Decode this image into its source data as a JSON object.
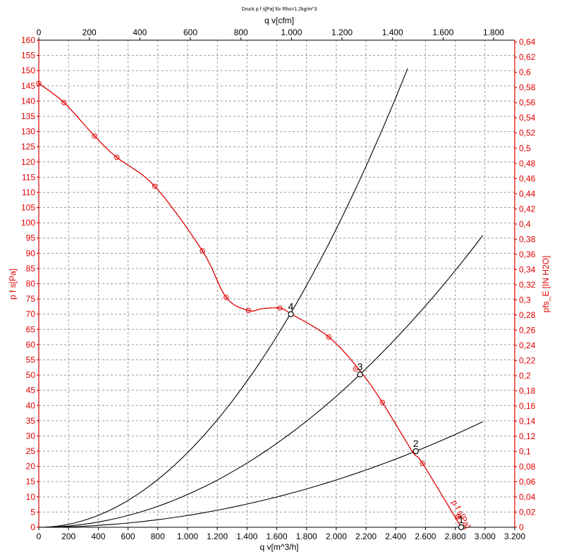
{
  "chart_data": {
    "type": "line",
    "title": "Druck p f s[Pa] für Rho=1,2kg/m^3",
    "xlabel_bottom": "q v[m^3/h]",
    "xlabel_top": "q v[cfm]",
    "ylabel_left": "p f s[Pa]",
    "ylabel_right": "pfs_E [IN H2O]",
    "xlim": [
      0,
      3200
    ],
    "ylim": [
      0,
      160
    ],
    "x_top_lim": [
      0,
      1883.5
    ],
    "y_right_lim": [
      0,
      0.6425
    ],
    "grid": true,
    "x_ticks": [
      "0",
      "200",
      "400",
      "600",
      "800",
      "1.000",
      "1.200",
      "1.400",
      "1.600",
      "1.800",
      "2.000",
      "2.200",
      "2.400",
      "2.600",
      "2.800",
      "3.000",
      "3.200"
    ],
    "x_top_ticks": [
      "0",
      "200",
      "400",
      "600",
      "800",
      "1.000",
      "1.200",
      "1.400",
      "1.600",
      "1.800"
    ],
    "y_ticks": [
      "0",
      "5",
      "10",
      "15",
      "20",
      "25",
      "30",
      "35",
      "40",
      "45",
      "50",
      "55",
      "60",
      "65",
      "70",
      "75",
      "80",
      "85",
      "90",
      "95",
      "100",
      "105",
      "110",
      "115",
      "120",
      "125",
      "130",
      "135",
      "140",
      "145",
      "150",
      "155",
      "160"
    ],
    "y_right_ticks": [
      "0",
      "0,02",
      "0,04",
      "0,06",
      "0,08",
      "0,1",
      "0,12",
      "0,14",
      "0,16",
      "0,18",
      "0,2",
      "0,22",
      "0,24",
      "0,26",
      "0,28",
      "0,3",
      "0,32",
      "0,34",
      "0,36",
      "0,38",
      "0,4",
      "0,42",
      "0,44",
      "0,46",
      "0,48",
      "0,5",
      "0,52",
      "0,54",
      "0,56",
      "0,58",
      "0,6",
      "0,62",
      "0,64"
    ],
    "fan_curve_label": "p f s[Pa]",
    "fan_curve": {
      "x": [
        0,
        170,
        375,
        525,
        780,
        1100,
        1260,
        1410,
        1500,
        1620,
        1700,
        1950,
        2150,
        2310,
        2510,
        2580,
        2840
      ],
      "y": [
        145.8,
        139.5,
        128.5,
        121.5,
        112.0,
        90.8,
        75.5,
        71.2,
        71.8,
        72.0,
        70.0,
        62.5,
        52.0,
        41.0,
        25.0,
        21.0,
        0
      ]
    },
    "markers": {
      "x": [
        0,
        170,
        375,
        525,
        780,
        1100,
        1260,
        1410,
        1620,
        1950,
        2130,
        2310,
        2580,
        2820
      ],
      "y": [
        145.8,
        139.5,
        128.5,
        121.5,
        112.0,
        90.8,
        75.5,
        71.2,
        72.0,
        62.5,
        52.0,
        41.0,
        21.0,
        3.5
      ]
    },
    "system_curves": [
      {
        "k": 2.45e-05,
        "x_end": 2480
      },
      {
        "k": 1.076e-05,
        "x_end": 2985
      },
      {
        "k": 3.89e-06,
        "x_end": 2985
      }
    ],
    "operating_points": [
      {
        "label": "4",
        "x": 1695,
        "y": 70.0
      },
      {
        "label": "3",
        "x": 2160,
        "y": 50.2
      },
      {
        "label": "2",
        "x": 2535,
        "y": 25.0
      },
      {
        "label": "1",
        "x": 2840,
        "y": 0
      }
    ]
  }
}
